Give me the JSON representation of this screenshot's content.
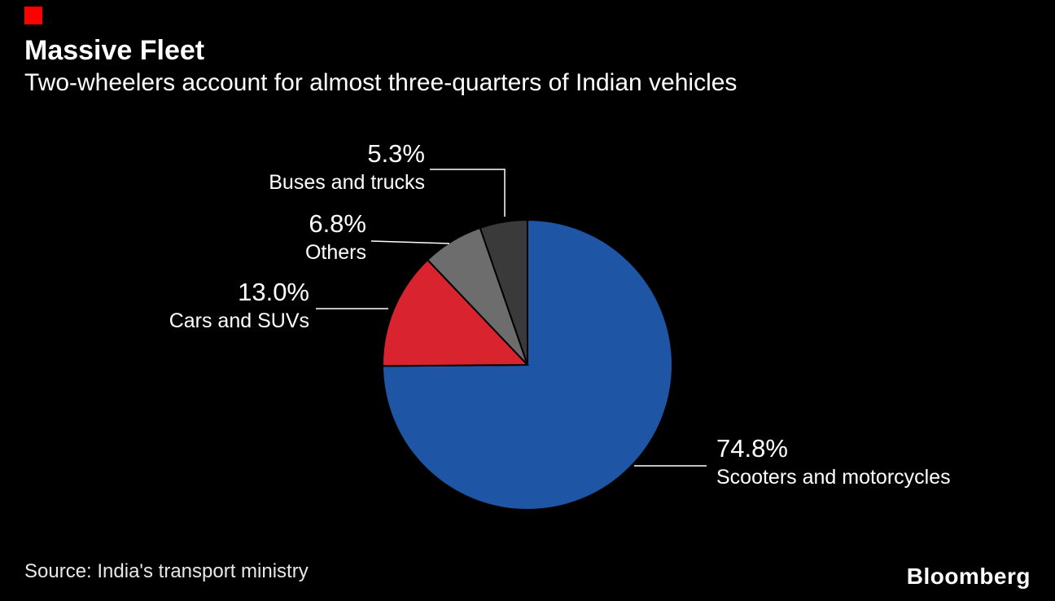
{
  "brand": {
    "logo_text": "Bloomberg",
    "accent_color": "#ff0000"
  },
  "colors": {
    "background": "#000000",
    "text": "#ffffff"
  },
  "source": "Source: India's transport ministry",
  "chart_data": {
    "type": "pie",
    "title": "Massive Fleet",
    "subtitle": "Two-wheelers account for almost three-quarters of Indian vehicles",
    "start_angle_deg": 0,
    "direction": "clockwise",
    "legend_position": "callouts",
    "slices": [
      {
        "label": "Scooters and motorcycles",
        "pct": "74.8%",
        "value": 74.8,
        "color": "#1f55a5"
      },
      {
        "label": "Cars and SUVs",
        "pct": "13.0%",
        "value": 13.0,
        "color": "#d9232e"
      },
      {
        "label": "Others",
        "pct": "6.8%",
        "value": 6.8,
        "color": "#6d6d6d"
      },
      {
        "label": "Buses and trucks",
        "pct": "5.3%",
        "value": 5.3,
        "color": "#3a3a3a"
      }
    ]
  }
}
